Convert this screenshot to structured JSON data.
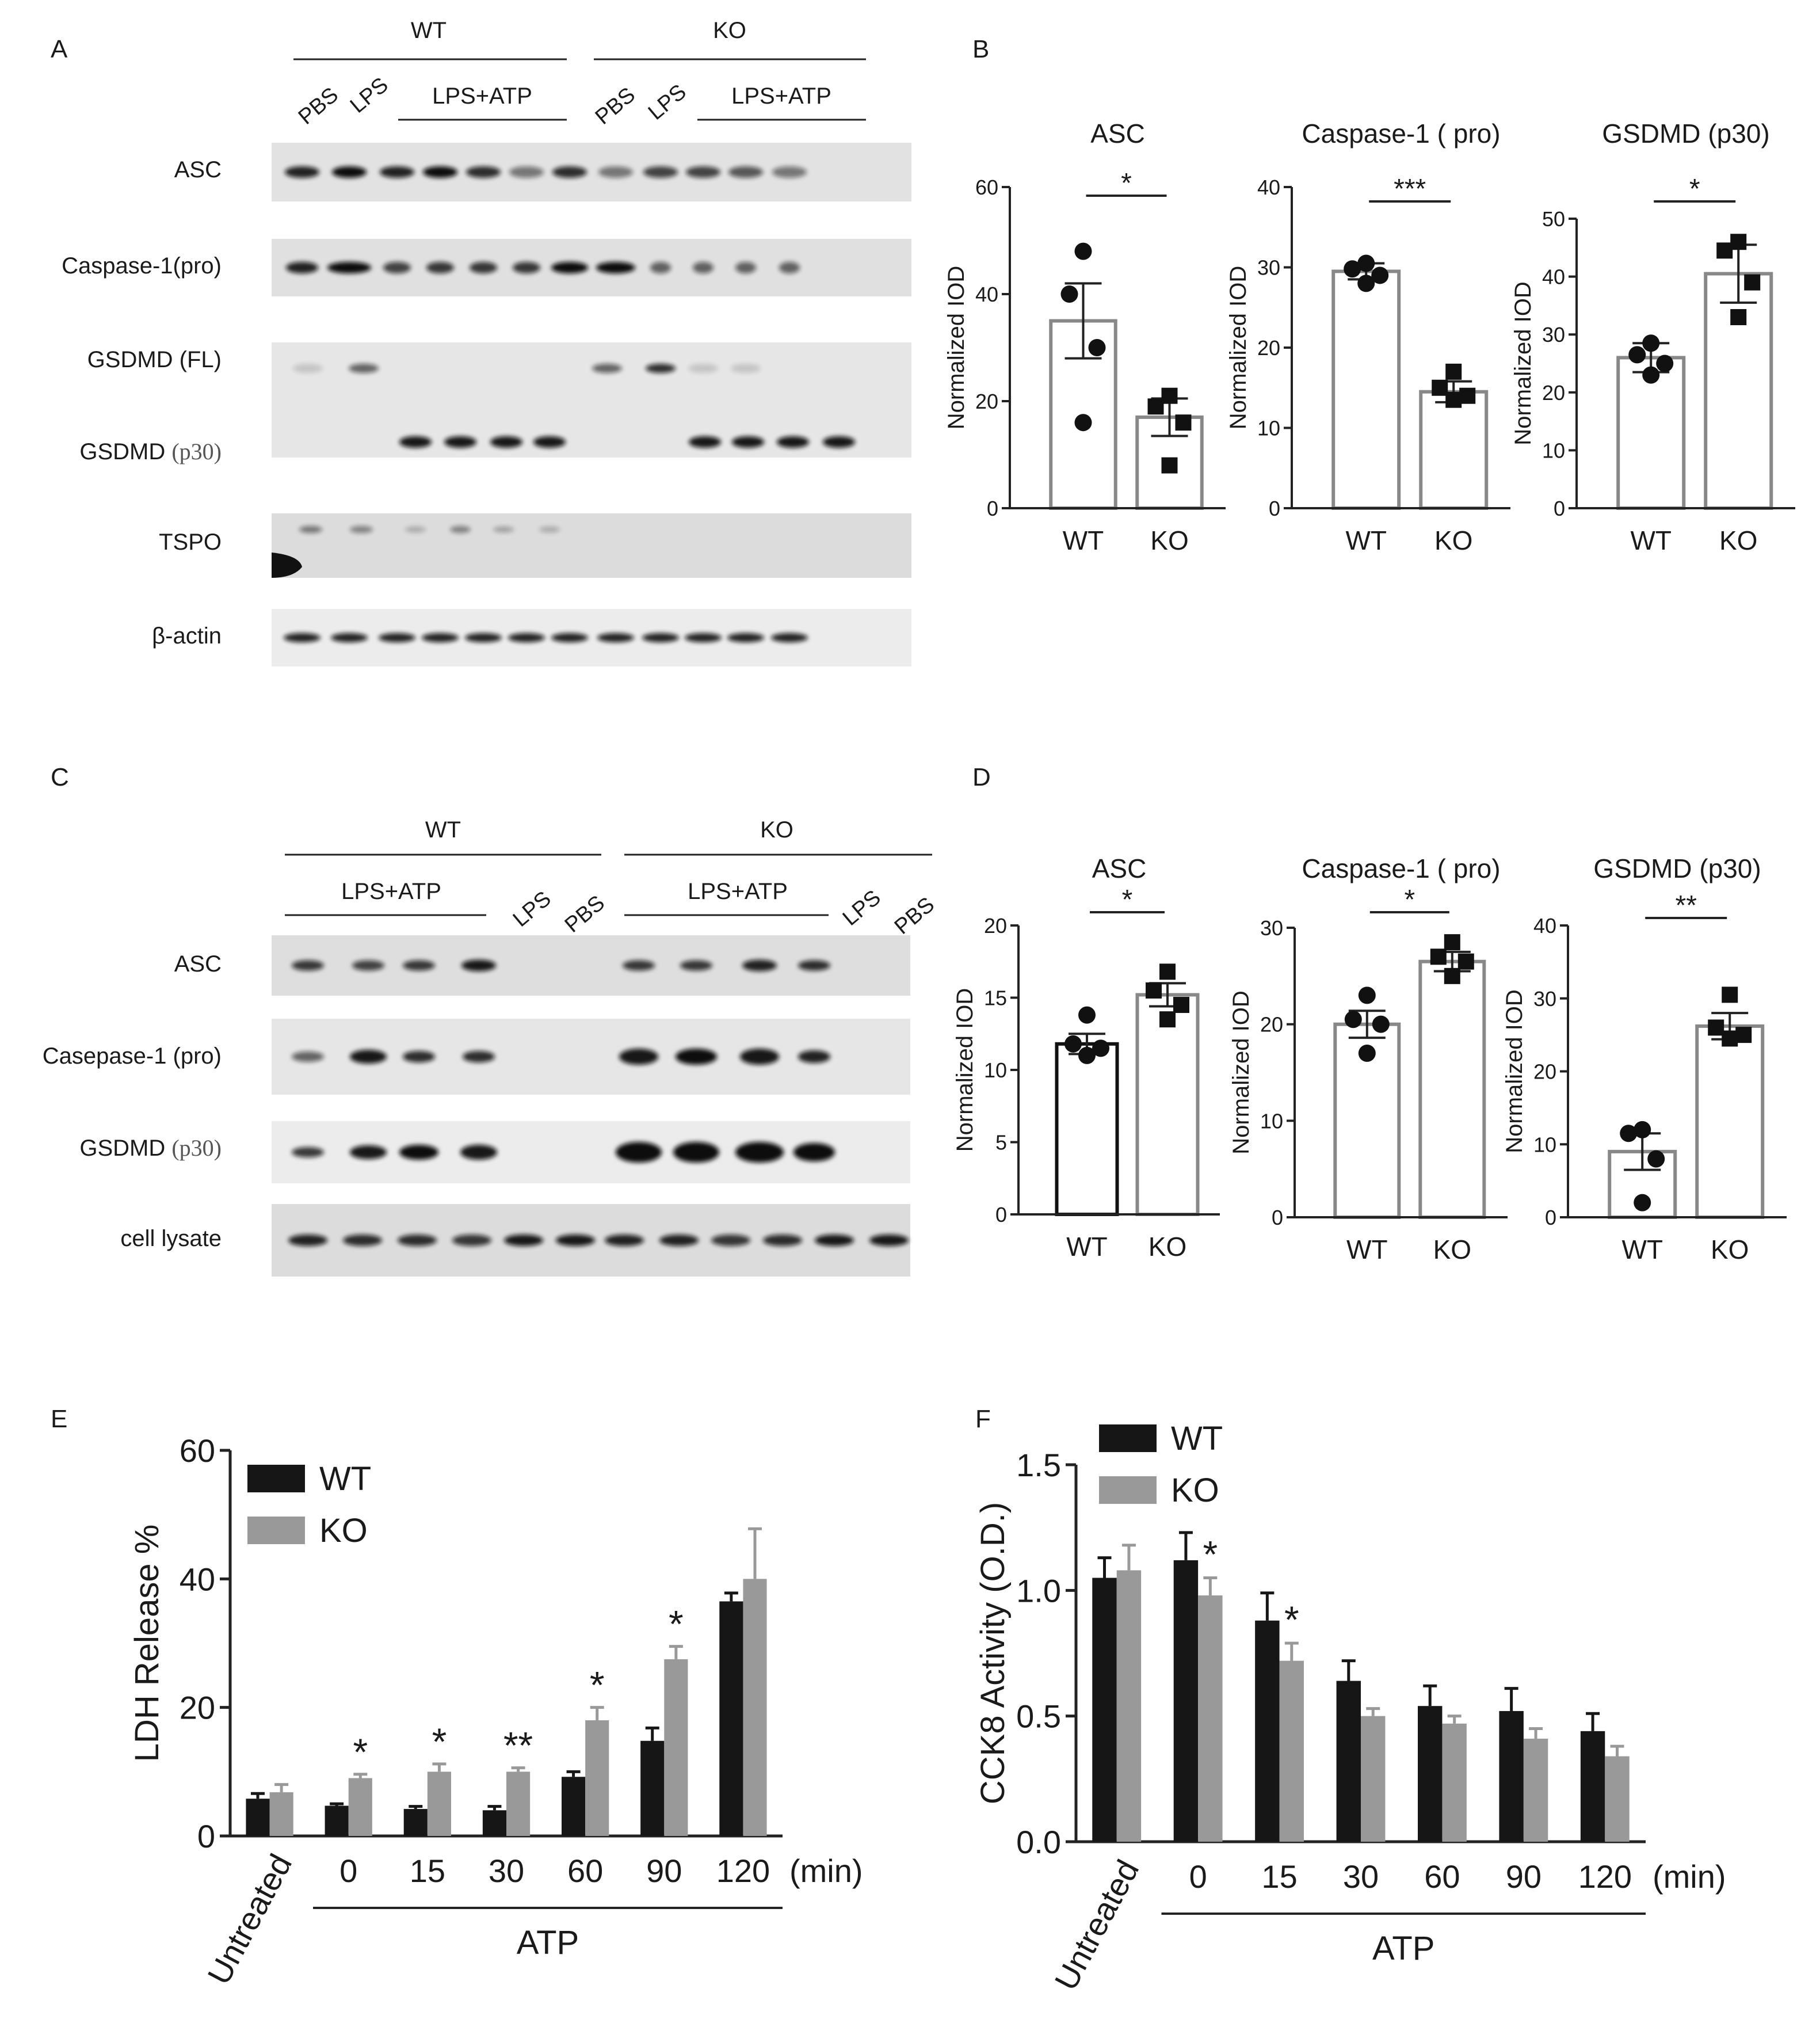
{
  "panels": {
    "A": {
      "letter": "A",
      "groups": [
        "WT",
        "KO"
      ],
      "lane_labels": [
        "PBS",
        "LPS",
        "LPS+ATP",
        "PBS",
        "LPS",
        "LPS+ATP"
      ],
      "rows": [
        "ASC",
        "Caspase-1(pro)",
        "GSDMD (FL)",
        "GSDMD ",
        "TSPO",
        "β-actin"
      ],
      "p30_suffix": "(p30)"
    },
    "C": {
      "letter": "C",
      "groups": [
        "WT",
        "KO"
      ],
      "lane_labels": [
        "LPS+ATP",
        "LPS",
        "PBS",
        "LPS+ATP",
        "LPS",
        "PBS"
      ],
      "rows": [
        "ASC",
        "Casepase-1 (pro)",
        "GSDMD ",
        "cell lysate"
      ],
      "p30_suffix": "(p30)"
    },
    "B": {
      "letter": "B"
    },
    "D": {
      "letter": "D"
    },
    "E": {
      "letter": "E"
    },
    "F": {
      "letter": "F"
    }
  },
  "chart_data": [
    {
      "id": "B1",
      "type": "bar",
      "title": "ASC",
      "ylabel": "Normalized IOD",
      "categories": [
        "WT",
        "KO"
      ],
      "values": [
        35,
        17
      ],
      "errors": [
        7,
        3.5
      ],
      "points": [
        [
          48,
          40,
          30,
          16
        ],
        [
          21,
          19,
          16,
          8
        ]
      ],
      "ylim": [
        0,
        60
      ],
      "yticks": [
        0,
        20,
        40,
        60
      ],
      "significance": "*",
      "bar_colors": [
        "#888888",
        "#888888"
      ],
      "point_shapes": [
        "circle",
        "square"
      ]
    },
    {
      "id": "B2",
      "type": "bar",
      "title": "Caspase-1 ( pro)",
      "ylabel": "Normalized IOD",
      "categories": [
        "WT",
        "KO"
      ],
      "values": [
        29.5,
        14.5
      ],
      "errors": [
        1,
        1.3
      ],
      "points": [
        [
          30.5,
          29.8,
          29,
          28
        ],
        [
          17,
          15,
          14,
          13.5
        ]
      ],
      "ylim": [
        0,
        40
      ],
      "yticks": [
        0,
        10,
        20,
        30,
        40
      ],
      "significance": "***",
      "bar_colors": [
        "#888888",
        "#888888"
      ],
      "point_shapes": [
        "circle",
        "square"
      ]
    },
    {
      "id": "B3",
      "type": "bar",
      "title": "GSDMD (p30)",
      "ylabel": "Normalized IOD",
      "categories": [
        "WT",
        "KO"
      ],
      "values": [
        26,
        40.5
      ],
      "errors": [
        2.5,
        5
      ],
      "points": [
        [
          28.5,
          26.5,
          25,
          23
        ],
        [
          46,
          44.5,
          39,
          33
        ]
      ],
      "ylim": [
        0,
        50
      ],
      "yticks": [
        0,
        10,
        20,
        30,
        40,
        50
      ],
      "significance": "*",
      "bar_colors": [
        "#888888",
        "#888888"
      ],
      "point_shapes": [
        "circle",
        "square"
      ]
    },
    {
      "id": "D1",
      "type": "bar",
      "title": "ASC",
      "ylabel": "Normalized IOD",
      "categories": [
        "WT",
        "KO"
      ],
      "values": [
        11.8,
        15.2
      ],
      "errors": [
        0.7,
        0.8
      ],
      "points": [
        [
          13.8,
          11.8,
          11.5,
          11
        ],
        [
          16.8,
          15.5,
          14.5,
          13.5
        ]
      ],
      "ylim": [
        0,
        20
      ],
      "yticks": [
        0,
        5,
        10,
        15,
        20
      ],
      "significance": "*",
      "bar_colors": [
        "#111111",
        "#888888"
      ],
      "point_shapes": [
        "circle",
        "square"
      ]
    },
    {
      "id": "D2",
      "type": "bar",
      "title": "Caspase-1 ( pro)",
      "ylabel": "Normalized IOD",
      "categories": [
        "WT",
        "KO"
      ],
      "values": [
        20,
        26.5
      ],
      "errors": [
        1.4,
        1
      ],
      "points": [
        [
          23,
          20.5,
          20,
          17
        ],
        [
          28.5,
          27,
          26.5,
          25
        ]
      ],
      "ylim": [
        0,
        30
      ],
      "yticks": [
        0,
        10,
        20,
        30
      ],
      "significance": "*",
      "bar_colors": [
        "#888888",
        "#888888"
      ],
      "point_shapes": [
        "circle",
        "square"
      ]
    },
    {
      "id": "D3",
      "type": "bar",
      "title": "GSDMD (p30)",
      "ylabel": "Normalized IOD",
      "categories": [
        "WT",
        "KO"
      ],
      "values": [
        9,
        26.2
      ],
      "errors": [
        2.5,
        1.8
      ],
      "points": [
        [
          12,
          11.5,
          8,
          2
        ],
        [
          30.5,
          26,
          25,
          24.5
        ]
      ],
      "ylim": [
        0,
        40
      ],
      "yticks": [
        0,
        10,
        20,
        30,
        40
      ],
      "significance": "**",
      "bar_colors": [
        "#888888",
        "#888888"
      ],
      "point_shapes": [
        "circle",
        "square"
      ]
    },
    {
      "id": "E",
      "type": "bar",
      "ylabel": "LDH Release %",
      "categories": [
        "Untreated",
        "0",
        "15",
        "30",
        "60",
        "90",
        "120"
      ],
      "unit_label": "(min)",
      "group_label": "ATP",
      "legend": [
        "WT",
        "KO"
      ],
      "series": [
        {
          "name": "WT",
          "values": [
            5.8,
            4.7,
            4.2,
            4.0,
            9.2,
            14.8,
            36.5
          ],
          "errors": [
            0.8,
            0.3,
            0.4,
            0.6,
            0.8,
            2.0,
            1.3
          ],
          "color": "#161616"
        },
        {
          "name": "KO",
          "values": [
            6.8,
            9.0,
            10.0,
            10.0,
            18.0,
            27.5,
            40.0
          ],
          "errors": [
            1.2,
            0.6,
            1.2,
            0.6,
            2.0,
            2.0,
            7.8
          ],
          "color": "#999999"
        }
      ],
      "significance": [
        "",
        "*",
        "*",
        "**",
        "*",
        "*",
        ""
      ],
      "ylim": [
        0,
        60
      ],
      "yticks": [
        0,
        20,
        40,
        60
      ]
    },
    {
      "id": "F",
      "type": "bar",
      "ylabel": "CCK8 Activity (O.D.)",
      "categories": [
        "Untreated",
        "0",
        "15",
        "30",
        "60",
        "90",
        "120"
      ],
      "unit_label": "(min)",
      "group_label": "ATP",
      "legend": [
        "WT",
        "KO"
      ],
      "series": [
        {
          "name": "WT",
          "values": [
            1.05,
            1.12,
            0.88,
            0.64,
            0.54,
            0.52,
            0.44
          ],
          "errors": [
            0.08,
            0.11,
            0.11,
            0.08,
            0.08,
            0.09,
            0.07
          ],
          "color": "#161616"
        },
        {
          "name": "KO",
          "values": [
            1.08,
            0.98,
            0.72,
            0.5,
            0.47,
            0.41,
            0.34
          ],
          "errors": [
            0.1,
            0.07,
            0.07,
            0.03,
            0.03,
            0.04,
            0.04
          ],
          "color": "#999999"
        }
      ],
      "significance": [
        "",
        "*",
        "*",
        "",
        "",
        "",
        ""
      ],
      "ylim": [
        0,
        1.5
      ],
      "yticks": [
        0.0,
        0.5,
        1.0,
        1.5
      ]
    }
  ]
}
